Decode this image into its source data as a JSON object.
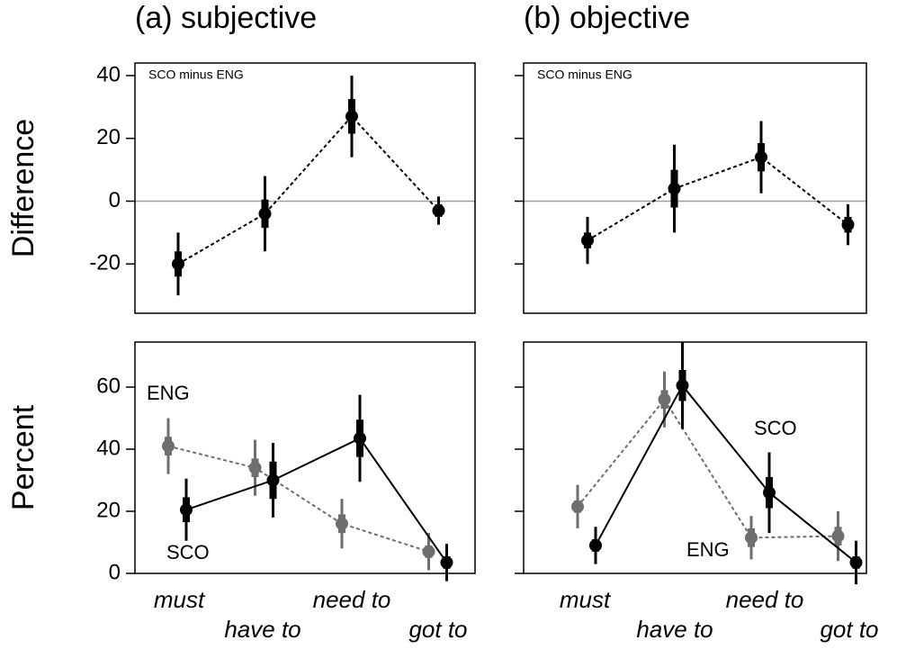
{
  "chart_data": [
    {
      "type": "errorbar",
      "title": "(a) subjective",
      "ylabel": "Difference",
      "ylim": [
        -35.7,
        44
      ],
      "yticks": [
        -20,
        0,
        20,
        40
      ],
      "reference_line": 0,
      "series": [
        {
          "name": "SCO minus ENG",
          "color": "#000000",
          "line_style": "dashed",
          "values": [
            -20,
            -4,
            27,
            -3
          ],
          "inner_error": [
            4,
            4.5,
            5.5,
            2
          ],
          "error": [
            10,
            12,
            13,
            4.5
          ]
        }
      ]
    },
    {
      "type": "errorbar",
      "title": "(b) objective",
      "ylim": [
        -35.7,
        44
      ],
      "reference_line": 0,
      "series": [
        {
          "name": "SCO minus ENG",
          "color": "#000000",
          "line_style": "dashed",
          "values": [
            -12.5,
            4,
            14,
            -7.5
          ],
          "inner_error": [
            2.5,
            6,
            4.5,
            2.5
          ],
          "error": [
            7.5,
            14,
            11.5,
            6.5
          ]
        }
      ]
    },
    {
      "type": "errorbar",
      "ylabel": "Percent",
      "categories": [
        "must",
        "have to",
        "need to",
        "got to"
      ],
      "ylim": [
        0,
        74.5
      ],
      "yticks": [
        0,
        20,
        40,
        60
      ],
      "series": [
        {
          "name": "ENG",
          "color": "#6e6e6e",
          "line_style": "dashed",
          "values": [
            41,
            34,
            16,
            7
          ],
          "inner_error": [
            3,
            3,
            3,
            2
          ],
          "error": [
            9,
            9,
            8,
            6
          ]
        },
        {
          "name": "SCO",
          "color": "#000000",
          "line_style": "solid",
          "values": [
            20.5,
            30,
            43.5,
            3.5
          ],
          "inner_error": [
            4,
            6,
            6,
            2
          ],
          "error": [
            10,
            12,
            14,
            6
          ]
        }
      ]
    },
    {
      "type": "errorbar",
      "categories": [
        "must",
        "have to",
        "need to",
        "got to"
      ],
      "ylim": [
        0,
        74.5
      ],
      "series": [
        {
          "name": "ENG",
          "color": "#6e6e6e",
          "line_style": "dashed",
          "values": [
            21.5,
            56,
            11.5,
            12
          ],
          "inner_error": [
            2,
            3,
            3,
            3
          ],
          "error": [
            7,
            9,
            7,
            8
          ]
        },
        {
          "name": "SCO",
          "color": "#000000",
          "line_style": "solid",
          "values": [
            9,
            60.5,
            26,
            3.5
          ],
          "inner_error": [
            2,
            5,
            5,
            2
          ],
          "error": [
            6,
            14,
            13,
            7
          ]
        }
      ]
    }
  ]
}
